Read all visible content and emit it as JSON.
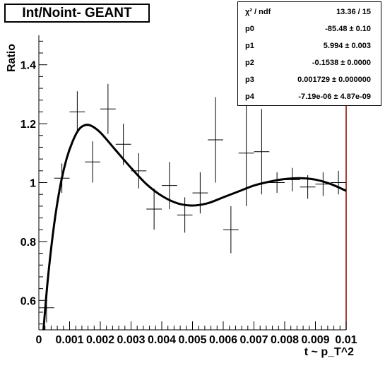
{
  "title": "Int/Noint- GEANT",
  "stats": [
    {
      "key": "χ² / ndf",
      "value": "13.36 / 15"
    },
    {
      "key": "p0",
      "value": "-85.48 ± 0.10"
    },
    {
      "key": "p1",
      "value": "5.994 ± 0.003"
    },
    {
      "key": "p2",
      "value": "-0.1538 ± 0.0000"
    },
    {
      "key": "p3",
      "value": "0.001729 ± 0.000000"
    },
    {
      "key": "p4",
      "value": "-7.19e-06 ± 4.87e-09"
    }
  ],
  "colors": {
    "frame": "#000000",
    "fit_line": "#000000",
    "right_axis": "#8b0000"
  },
  "chart_data": {
    "type": "scatter",
    "title": "Int/Noint- GEANT",
    "xlabel": "t ~ p_T^2",
    "ylabel": "Ratio",
    "xlim": [
      0,
      0.01
    ],
    "ylim": [
      0.5,
      1.5
    ],
    "x_ticks": [
      "0",
      "0.001",
      "0.002",
      "0.003",
      "0.004",
      "0.005",
      "0.006",
      "0.007",
      "0.008",
      "0.009",
      "0.01"
    ],
    "y_ticks": [
      "0.6",
      "0.8",
      "1",
      "1.2",
      "1.4"
    ],
    "points": [
      {
        "x": 0.00025,
        "y": 0.575,
        "xerr": 0.00025,
        "yerr": 0.05
      },
      {
        "x": 0.00075,
        "y": 1.015,
        "xerr": 0.00025,
        "yerr": 0.05
      },
      {
        "x": 0.00125,
        "y": 1.24,
        "xerr": 0.00025,
        "yerr": 0.07
      },
      {
        "x": 0.00175,
        "y": 1.07,
        "xerr": 0.00025,
        "yerr": 0.07
      },
      {
        "x": 0.00225,
        "y": 1.25,
        "xerr": 0.00025,
        "yerr": 0.085
      },
      {
        "x": 0.00275,
        "y": 1.13,
        "xerr": 0.00025,
        "yerr": 0.07
      },
      {
        "x": 0.00325,
        "y": 1.04,
        "xerr": 0.00025,
        "yerr": 0.06
      },
      {
        "x": 0.00375,
        "y": 0.91,
        "xerr": 0.00025,
        "yerr": 0.07
      },
      {
        "x": 0.00425,
        "y": 0.99,
        "xerr": 0.00025,
        "yerr": 0.08
      },
      {
        "x": 0.00475,
        "y": 0.89,
        "xerr": 0.00025,
        "yerr": 0.06
      },
      {
        "x": 0.00525,
        "y": 0.965,
        "xerr": 0.00025,
        "yerr": 0.07
      },
      {
        "x": 0.00575,
        "y": 1.145,
        "xerr": 0.00025,
        "yerr": 0.145
      },
      {
        "x": 0.00625,
        "y": 0.84,
        "xerr": 0.00025,
        "yerr": 0.08
      },
      {
        "x": 0.00675,
        "y": 1.1,
        "xerr": 0.00025,
        "yerr": 0.18
      },
      {
        "x": 0.00725,
        "y": 1.105,
        "xerr": 0.00025,
        "yerr": 0.145
      },
      {
        "x": 0.00775,
        "y": 1.0,
        "xerr": 0.00025,
        "yerr": 0.035
      },
      {
        "x": 0.00825,
        "y": 1.01,
        "xerr": 0.00025,
        "yerr": 0.04
      },
      {
        "x": 0.00875,
        "y": 0.985,
        "xerr": 0.00025,
        "yerr": 0.04
      },
      {
        "x": 0.00925,
        "y": 0.995,
        "xerr": 0.00025,
        "yerr": 0.04
      },
      {
        "x": 0.00975,
        "y": 1.0,
        "xerr": 0.00025,
        "yerr": 0.04
      }
    ],
    "fit_curve": [
      [
        0.00015,
        0.5
      ],
      [
        0.0003,
        0.68
      ],
      [
        0.0005,
        0.86
      ],
      [
        0.0007,
        0.99
      ],
      [
        0.0009,
        1.08
      ],
      [
        0.0011,
        1.14
      ],
      [
        0.0013,
        1.18
      ],
      [
        0.0015,
        1.195
      ],
      [
        0.0017,
        1.193
      ],
      [
        0.002,
        1.17
      ],
      [
        0.0025,
        1.11
      ],
      [
        0.003,
        1.05
      ],
      [
        0.0035,
        0.995
      ],
      [
        0.004,
        0.955
      ],
      [
        0.0045,
        0.93
      ],
      [
        0.005,
        0.922
      ],
      [
        0.0055,
        0.93
      ],
      [
        0.006,
        0.95
      ],
      [
        0.0065,
        0.97
      ],
      [
        0.007,
        0.99
      ],
      [
        0.0075,
        1.003
      ],
      [
        0.008,
        1.012
      ],
      [
        0.0085,
        1.015
      ],
      [
        0.009,
        1.01
      ],
      [
        0.0095,
        0.995
      ],
      [
        0.01,
        0.972
      ]
    ],
    "grid": false
  }
}
